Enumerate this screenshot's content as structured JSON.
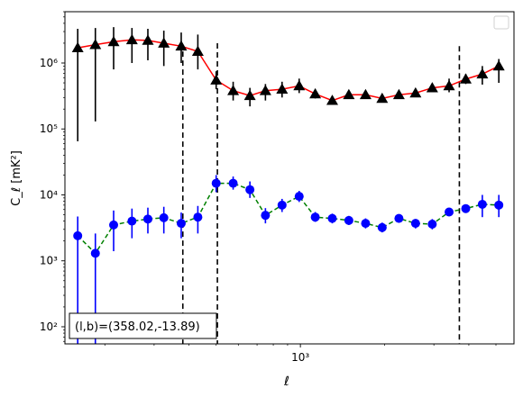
{
  "chart_data": {
    "type": "scatter",
    "xlabel": "ℓ",
    "ylabel": "C_ℓ [mK²]",
    "x_scale": "log",
    "y_scale": "log",
    "xlim": [
      144,
      5800
    ],
    "ylim": [
      55,
      6000000
    ],
    "x_tick_labels": [
      {
        "value": 1000,
        "label": "10³"
      }
    ],
    "y_tick_labels": [
      {
        "value": 100,
        "label": "10²"
      },
      {
        "value": 1000,
        "label": "10³"
      },
      {
        "value": 10000,
        "label": "10⁴"
      },
      {
        "value": 100000,
        "label": "10⁵"
      },
      {
        "value": 1000000,
        "label": "10⁶"
      }
    ],
    "annotation": "(l,b)=(358.02,-13.89)",
    "legend_position": "upper right",
    "vertical_lines": [
      {
        "x": 380,
        "y_top": 1500000
      },
      {
        "x": 505,
        "y_top": 2000000
      },
      {
        "x": 3700,
        "y_top": 1800000
      }
    ],
    "series": [
      {
        "marker": "triangle",
        "color": "#000000",
        "line_color": "#ff0000",
        "line_style": "solid",
        "x": [
          160,
          185,
          215,
          250,
          285,
          325,
          375,
          430,
          500,
          575,
          660,
          750,
          860,
          990,
          1130,
          1300,
          1490,
          1710,
          1960,
          2250,
          2580,
          2960,
          3400,
          3900,
          4470,
          5120
        ],
        "y": [
          1700000,
          1900000,
          2100000,
          2250000,
          2200000,
          2000000,
          1800000,
          1500000,
          550000,
          380000,
          320000,
          380000,
          400000,
          450000,
          340000,
          270000,
          330000,
          330000,
          290000,
          330000,
          350000,
          420000,
          450000,
          570000,
          680000,
          900000
        ],
        "y_err_low": [
          65000,
          130000,
          800000,
          1000000,
          1100000,
          900000,
          1000000,
          800000,
          400000,
          270000,
          220000,
          270000,
          300000,
          350000,
          290000,
          240000,
          290000,
          290000,
          260000,
          290000,
          310000,
          370000,
          360000,
          480000,
          470000,
          500000
        ],
        "y_err_high": [
          3300000,
          3400000,
          3500000,
          3400000,
          3300000,
          3100000,
          2900000,
          2700000,
          750000,
          520000,
          420000,
          480000,
          520000,
          580000,
          390000,
          300000,
          370000,
          370000,
          320000,
          370000,
          390000,
          470000,
          580000,
          680000,
          900000,
          1150000
        ]
      },
      {
        "marker": "circle",
        "color": "#0000ff",
        "line_color": "#008000",
        "line_style": "dashed",
        "x": [
          160,
          185,
          215,
          250,
          285,
          325,
          375,
          430,
          500,
          575,
          660,
          750,
          860,
          990,
          1130,
          1300,
          1490,
          1710,
          1960,
          2250,
          2580,
          2960,
          3400,
          3900,
          4470,
          5120
        ],
        "y": [
          2400,
          1300,
          3500,
          4000,
          4300,
          4500,
          3700,
          4600,
          15000,
          15000,
          12000,
          4900,
          7000,
          9500,
          4600,
          4400,
          4100,
          3700,
          3200,
          4400,
          3700,
          3600,
          5500,
          6200,
          7200,
          7000
        ],
        "y_err_low": [
          55,
          55,
          1400,
          2200,
          2600,
          2600,
          2200,
          2600,
          11000,
          12000,
          9000,
          3700,
          5500,
          7800,
          3900,
          3700,
          3500,
          3100,
          2700,
          3800,
          3100,
          3000,
          5000,
          5600,
          4600,
          4600
        ],
        "y_err_high": [
          4700,
          2600,
          5800,
          6200,
          6400,
          6600,
          5400,
          6800,
          20000,
          19000,
          16000,
          6300,
          8700,
          11500,
          5500,
          5200,
          4800,
          4400,
          3800,
          5100,
          4300,
          4300,
          6100,
          6900,
          10000,
          10000
        ]
      }
    ]
  }
}
